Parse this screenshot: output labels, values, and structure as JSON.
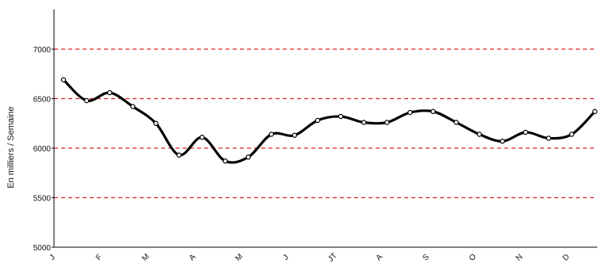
{
  "chart_data": {
    "type": "line",
    "ylabel": "En milliers / Semaine",
    "ylim": [
      5000,
      7400
    ],
    "yticks": [
      5000,
      5500,
      6000,
      6500,
      7000
    ],
    "gridlines": [
      5500,
      6000,
      6500,
      7000
    ],
    "grid_color": "#e02020",
    "grid_style": "dashed",
    "line_color": "#000000",
    "marker": "open-circle",
    "month_labels": [
      "J",
      "F",
      "M",
      "A",
      "M",
      "J",
      "JT",
      "A",
      "S",
      "O",
      "N",
      "D"
    ],
    "series": [
      {
        "values": [
          6690,
          6480,
          6560,
          6420,
          6250,
          5930,
          6110,
          5870,
          5910,
          6140,
          6130,
          6280,
          6320,
          6260,
          6260,
          6360,
          6370,
          6260,
          6140,
          6070,
          6160,
          6100,
          6140,
          6370
        ]
      }
    ]
  }
}
